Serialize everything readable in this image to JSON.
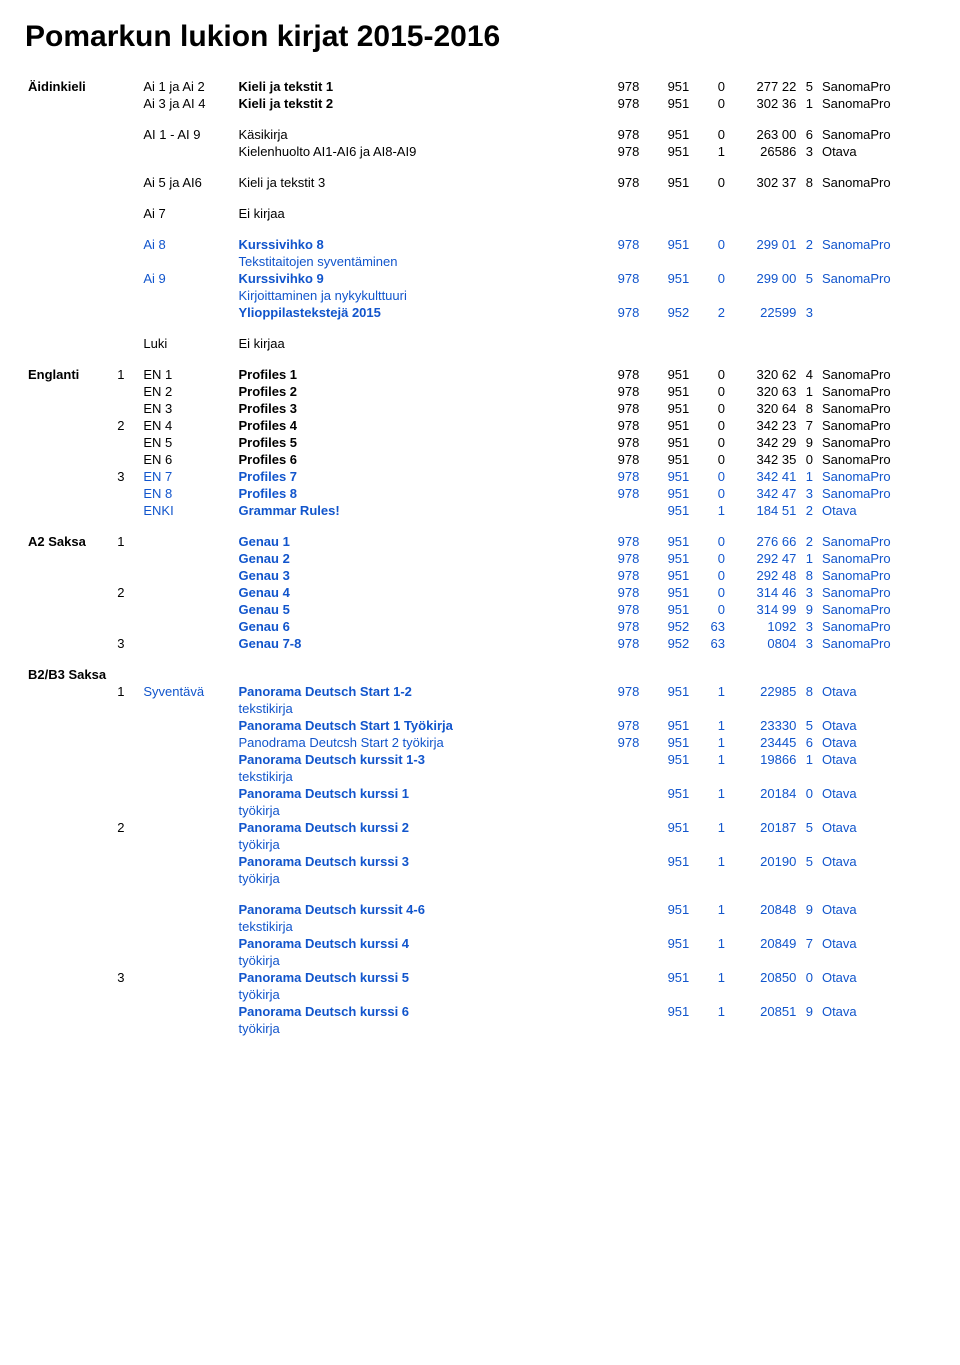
{
  "title": "Pomarkun lukion kirjat  2015-2016",
  "colors": {
    "blue": "#1155cc",
    "black": "#000000",
    "background": "#ffffff"
  },
  "rows": [
    {
      "subj": "Äidinkieli",
      "grp": "",
      "crs": "Ai 1 ja Ai 2",
      "title": "Kieli ja tekstit 1",
      "n": [
        "978",
        "951",
        "0",
        "277 22",
        "5"
      ],
      "pub": "SanomaPro",
      "bold": true,
      "blue": false
    },
    {
      "subj": "",
      "grp": "",
      "crs": "Ai 3 ja AI 4",
      "title": "Kieli ja tekstit 2",
      "n": [
        "978",
        "951",
        "0",
        "302 36",
        "1"
      ],
      "pub": "SanomaPro",
      "bold": true,
      "blue": false
    },
    {
      "sep": true
    },
    {
      "subj": "",
      "grp": "",
      "crs": "AI 1 - AI 9",
      "title": "Käsikirja",
      "n": [
        "978",
        "951",
        "0",
        "263 00",
        "6"
      ],
      "pub": "SanomaPro",
      "bold": false,
      "blue": false
    },
    {
      "subj": "",
      "grp": "",
      "crs": "",
      "title": "Kielenhuolto AI1-AI6 ja AI8-AI9",
      "n": [
        "978",
        "951",
        "1",
        "26586",
        "3"
      ],
      "pub": "Otava",
      "bold": false,
      "blue": false
    },
    {
      "sep": true
    },
    {
      "subj": "",
      "grp": "",
      "crs": "Ai 5 ja AI6",
      "title": "Kieli ja tekstit 3",
      "n": [
        "978",
        "951",
        "0",
        "302 37",
        "8"
      ],
      "pub": "SanomaPro",
      "bold": false,
      "blue": false
    },
    {
      "sep": true
    },
    {
      "subj": "",
      "grp": "",
      "crs": "Ai 7",
      "title": "Ei kirjaa",
      "n": [
        "",
        "",
        "",
        "",
        ""
      ],
      "pub": "",
      "bold": false,
      "blue": false
    },
    {
      "sep": true
    },
    {
      "subj": "",
      "grp": "",
      "crs": "Ai 8",
      "title": "Kurssivihko 8",
      "n": [
        "978",
        "951",
        "0",
        "299 01",
        "2"
      ],
      "pub": "SanomaPro",
      "bold": true,
      "blue": true
    },
    {
      "subj": "",
      "grp": "",
      "crs": "",
      "title": "Tekstitaitojen syventäminen",
      "n": [
        "",
        "",
        "",
        "",
        ""
      ],
      "pub": "",
      "bold": false,
      "blue": true
    },
    {
      "subj": "",
      "grp": "",
      "crs": "Ai 9",
      "title": "Kurssivihko 9",
      "n": [
        "978",
        "951",
        "0",
        "299 00",
        "5"
      ],
      "pub": "SanomaPro",
      "bold": true,
      "blue": true
    },
    {
      "subj": "",
      "grp": "",
      "crs": "",
      "title": "Kirjoittaminen ja nykykulttuuri",
      "n": [
        "",
        "",
        "",
        "",
        ""
      ],
      "pub": "",
      "bold": false,
      "blue": true
    },
    {
      "subj": "",
      "grp": "",
      "crs": "",
      "title": "Ylioppilastekstejä 2015",
      "n": [
        "978",
        "952",
        "2",
        "22599",
        "3"
      ],
      "pub": "",
      "bold": true,
      "blue": true
    },
    {
      "sep": true
    },
    {
      "subj": "",
      "grp": "",
      "crs": "Luki",
      "title": "Ei kirjaa",
      "n": [
        "",
        "",
        "",
        "",
        ""
      ],
      "pub": "",
      "bold": false,
      "blue": false
    },
    {
      "sep": true
    },
    {
      "subj": "Englanti",
      "grp": "1",
      "crs": "EN 1",
      "title": "Profiles 1",
      "n": [
        "978",
        "951",
        "0",
        "320 62",
        "4"
      ],
      "pub": "SanomaPro",
      "bold": true,
      "blue": false
    },
    {
      "subj": "",
      "grp": "",
      "crs": "EN 2",
      "title": "Profiles 2",
      "n": [
        "978",
        "951",
        "0",
        "320 63",
        "1"
      ],
      "pub": "SanomaPro",
      "bold": true,
      "blue": false
    },
    {
      "subj": "",
      "grp": "",
      "crs": "EN 3",
      "title": "Profiles 3",
      "n": [
        "978",
        "951",
        "0",
        "320 64",
        "8"
      ],
      "pub": "SanomaPro",
      "bold": true,
      "blue": false
    },
    {
      "subj": "",
      "grp": "2",
      "crs": "EN 4",
      "title": "Profiles 4",
      "n": [
        "978",
        "951",
        "0",
        "342 23",
        "7"
      ],
      "pub": "SanomaPro",
      "bold": true,
      "blue": false
    },
    {
      "subj": "",
      "grp": "",
      "crs": "EN 5",
      "title": "Profiles 5",
      "n": [
        "978",
        "951",
        "0",
        "342 29",
        "9"
      ],
      "pub": "SanomaPro",
      "bold": true,
      "blue": false
    },
    {
      "subj": "",
      "grp": "",
      "crs": "EN 6",
      "title": "Profiles 6",
      "n": [
        "978",
        "951",
        "0",
        "342 35",
        "0"
      ],
      "pub": "SanomaPro",
      "bold": true,
      "blue": false
    },
    {
      "subj": "",
      "grp": "3",
      "crs": "EN 7",
      "title": "Profiles 7",
      "n": [
        "978",
        "951",
        "0",
        "342 41",
        "1"
      ],
      "pub": "SanomaPro",
      "bold": true,
      "blue": true
    },
    {
      "subj": "",
      "grp": "",
      "crs": "EN 8",
      "title": "Profiles 8",
      "n": [
        "978",
        "951",
        "0",
        "342 47",
        "3"
      ],
      "pub": "SanomaPro",
      "bold": true,
      "blue": true
    },
    {
      "subj": "",
      "grp": "",
      "crs": "ENKI",
      "title": "Grammar Rules!",
      "n": [
        "",
        "951",
        "1",
        "184 51",
        "2"
      ],
      "pub": "Otava",
      "bold": true,
      "blue": true
    },
    {
      "sep": true
    },
    {
      "subj": "A2 Saksa",
      "grp": "1",
      "crs": "",
      "title": "Genau 1",
      "n": [
        "978",
        "951",
        "0",
        "276 66",
        "2"
      ],
      "pub": "SanomaPro",
      "bold": true,
      "blue": true
    },
    {
      "subj": "",
      "grp": "",
      "crs": "",
      "title": "Genau 2",
      "n": [
        "978",
        "951",
        "0",
        "292 47",
        "1"
      ],
      "pub": "SanomaPro",
      "bold": true,
      "blue": true
    },
    {
      "subj": "",
      "grp": "",
      "crs": "",
      "title": "Genau 3",
      "n": [
        "978",
        "951",
        "0",
        "292 48",
        "8"
      ],
      "pub": "SanomaPro",
      "bold": true,
      "blue": true
    },
    {
      "subj": "",
      "grp": "2",
      "crs": "",
      "title": "Genau 4",
      "n": [
        "978",
        "951",
        "0",
        "314 46",
        "3"
      ],
      "pub": "SanomaPro",
      "bold": true,
      "blue": true
    },
    {
      "subj": "",
      "grp": "",
      "crs": "",
      "title": "Genau 5",
      "n": [
        "978",
        "951",
        "0",
        "314 99",
        "9"
      ],
      "pub": "SanomaPro",
      "bold": true,
      "blue": true
    },
    {
      "subj": "",
      "grp": "",
      "crs": "",
      "title": "Genau 6",
      "n": [
        "978",
        "952",
        "63",
        "1092",
        "3"
      ],
      "pub": "SanomaPro",
      "bold": true,
      "blue": true
    },
    {
      "subj": "",
      "grp": "3",
      "crs": "",
      "title": "Genau 7-8",
      "n": [
        "978",
        "952",
        "63",
        "0804",
        "3"
      ],
      "pub": "SanomaPro",
      "bold": true,
      "blue": true
    },
    {
      "sep": true
    },
    {
      "subj": "B2/B3 Saksa",
      "grp": "",
      "crs": "",
      "title": "",
      "n": [
        "",
        "",
        "",
        "",
        ""
      ],
      "pub": "",
      "bold": true,
      "blue": false
    },
    {
      "subj": "",
      "grp": "1",
      "crs": "Syventävä",
      "title": "Panorama Deutsch Start 1-2",
      "n": [
        "978",
        "951",
        "1",
        "22985",
        "8"
      ],
      "pub": "Otava",
      "bold": true,
      "blue": true
    },
    {
      "subj": "",
      "grp": "",
      "crs": "",
      "title": "tekstikirja",
      "n": [
        "",
        "",
        "",
        "",
        ""
      ],
      "pub": "",
      "bold": false,
      "blue": true
    },
    {
      "subj": "",
      "grp": "",
      "crs": "",
      "title": "Panorama Deutsch Start 1 Työkirja",
      "n": [
        "978",
        "951",
        "1",
        "23330",
        "5"
      ],
      "pub": "Otava",
      "bold": true,
      "blue": true
    },
    {
      "subj": "",
      "grp": "",
      "crs": "",
      "title": "Panodrama Deutcsh Start 2 työkirja",
      "n": [
        "978",
        "951",
        "1",
        "23445",
        "6"
      ],
      "pub": "Otava",
      "bold": false,
      "blue": true
    },
    {
      "subj": "",
      "grp": "",
      "crs": "",
      "title": "Panorama Deutsch kurssit 1-3",
      "n": [
        "",
        "951",
        "1",
        "19866",
        "1"
      ],
      "pub": "Otava",
      "bold": true,
      "blue": true
    },
    {
      "subj": "",
      "grp": "",
      "crs": "",
      "title": "tekstikirja",
      "n": [
        "",
        "",
        "",
        "",
        ""
      ],
      "pub": "",
      "bold": false,
      "blue": true
    },
    {
      "subj": "",
      "grp": "",
      "crs": "",
      "title": "Panorama Deutsch kurssi 1",
      "n": [
        "",
        "951",
        "1",
        "20184",
        "0"
      ],
      "pub": "Otava",
      "bold": true,
      "blue": true
    },
    {
      "subj": "",
      "grp": "",
      "crs": "",
      "title": "työkirja",
      "n": [
        "",
        "",
        "",
        "",
        ""
      ],
      "pub": "",
      "bold": false,
      "blue": true
    },
    {
      "subj": "",
      "grp": "2",
      "crs": "",
      "title": "Panorama Deutsch kurssi 2",
      "n": [
        "",
        "951",
        "1",
        "20187",
        "5"
      ],
      "pub": "Otava",
      "bold": true,
      "blue": true
    },
    {
      "subj": "",
      "grp": "",
      "crs": "",
      "title": "työkirja",
      "n": [
        "",
        "",
        "",
        "",
        ""
      ],
      "pub": "",
      "bold": false,
      "blue": true
    },
    {
      "subj": "",
      "grp": "",
      "crs": "",
      "title": "Panorama Deutsch kurssi 3",
      "n": [
        "",
        "951",
        "1",
        "20190",
        "5"
      ],
      "pub": "Otava",
      "bold": true,
      "blue": true
    },
    {
      "subj": "",
      "grp": "",
      "crs": "",
      "title": "työkirja",
      "n": [
        "",
        "",
        "",
        "",
        ""
      ],
      "pub": "",
      "bold": false,
      "blue": true
    },
    {
      "sep": true
    },
    {
      "subj": "",
      "grp": "",
      "crs": "",
      "title": "Panorama Deutsch kurssit 4-6",
      "n": [
        "",
        "951",
        "1",
        "20848",
        "9"
      ],
      "pub": "Otava",
      "bold": true,
      "blue": true
    },
    {
      "subj": "",
      "grp": "",
      "crs": "",
      "title": "tekstikirja",
      "n": [
        "",
        "",
        "",
        "",
        ""
      ],
      "pub": "",
      "bold": false,
      "blue": true
    },
    {
      "subj": "",
      "grp": "",
      "crs": "",
      "title": "Panorama Deutsch kurssi 4",
      "n": [
        "",
        "951",
        "1",
        "20849",
        "7"
      ],
      "pub": "Otava",
      "bold": true,
      "blue": true
    },
    {
      "subj": "",
      "grp": "",
      "crs": "",
      "title": "työkirja",
      "n": [
        "",
        "",
        "",
        "",
        ""
      ],
      "pub": "",
      "bold": false,
      "blue": true
    },
    {
      "subj": "",
      "grp": "3",
      "crs": "",
      "title": "Panorama Deutsch kurssi 5",
      "n": [
        "",
        "951",
        "1",
        "20850",
        "0"
      ],
      "pub": "Otava",
      "bold": true,
      "blue": true
    },
    {
      "subj": "",
      "grp": "",
      "crs": "",
      "title": "työkirja",
      "n": [
        "",
        "",
        "",
        "",
        ""
      ],
      "pub": "",
      "bold": false,
      "blue": true
    },
    {
      "subj": "",
      "grp": "",
      "crs": "",
      "title": "Panorama Deutsch kurssi 6",
      "n": [
        "",
        "951",
        "1",
        "20851",
        "9"
      ],
      "pub": "Otava",
      "bold": true,
      "blue": true
    },
    {
      "subj": "",
      "grp": "",
      "crs": "",
      "title": "työkirja",
      "n": [
        "",
        "",
        "",
        "",
        ""
      ],
      "pub": "",
      "bold": false,
      "blue": true
    }
  ]
}
